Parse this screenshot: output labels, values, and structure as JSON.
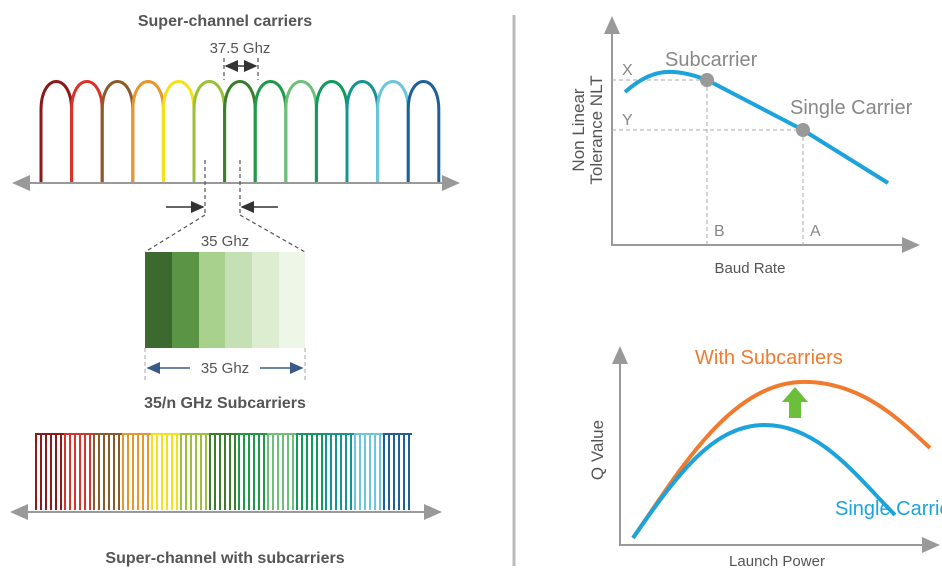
{
  "left": {
    "title": "Super-channel carriers",
    "spacing_label": "37.5 Ghz",
    "zoom_label": "35 Ghz",
    "width_label": "35 Ghz",
    "subcarriers_label": "35/n GHz Subcarriers",
    "bottom_label": "Super-channel with subcarriers"
  },
  "nlt_plot": {
    "y_label": [
      "Non Linear",
      "Tolerance NLT"
    ],
    "x_label": "Baud Rate",
    "points": [
      {
        "label": "Subcarrier",
        "y": "X",
        "x": "B"
      },
      {
        "label": "Single Carrier",
        "y": "Y",
        "x": "A"
      }
    ]
  },
  "q_plot": {
    "y_label": "Q Value",
    "x_label": "Launch Power",
    "curves": [
      "With Subcarriers",
      "Single Carrier"
    ]
  }
}
